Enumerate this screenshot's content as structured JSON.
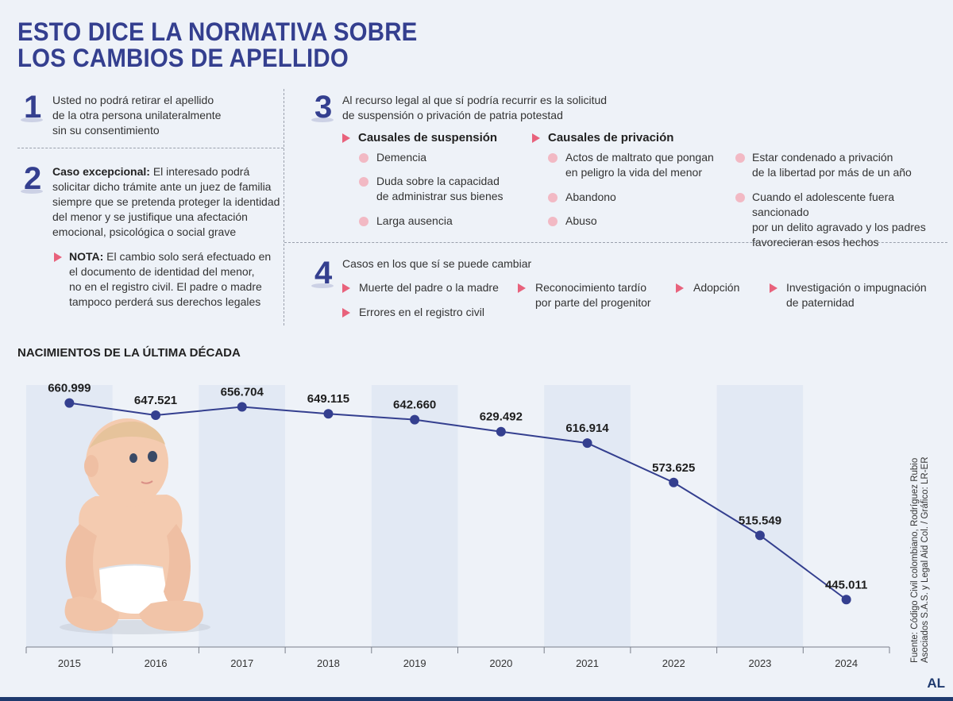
{
  "title": {
    "line1": "ESTO DICE LA NORMATIVA SOBRE",
    "line2": "LOS CAMBIOS DE APELLIDO"
  },
  "section1": {
    "number": "1",
    "lines": [
      "Usted no podrá retirar el apellido",
      "de la otra persona unilateralmente",
      "sin su consentimiento"
    ]
  },
  "section2": {
    "number": "2",
    "bold": "Caso excepcional:",
    "line1": " El interesado podrá",
    "lines": [
      "solicitar dicho trámite ante un juez de familia",
      "siempre que se pretenda proteger la identidad",
      "del menor y se justifique una afectación",
      "emocional, psicológica o social grave"
    ],
    "note_bold": "NOTA:",
    "note_line1": " El cambio solo será efectuado en",
    "note_lines": [
      "el documento de identidad del menor,",
      "no en el registro civil. El padre o madre",
      "tampoco perderá sus derechos legales"
    ]
  },
  "section3": {
    "number": "3",
    "lines": [
      "Al recurso legal al que sí podría recurrir es la solicitud",
      "de suspensión o privación de patria potestad"
    ],
    "suspension_title": "Causales de suspensión",
    "suspension_items": [
      "Demencia",
      "Duda sobre la capacidad",
      "de administrar sus bienes",
      "Larga ausencia"
    ],
    "privation_title": "Causales de privación",
    "privation_items": [
      "Actos de maltrato que pongan",
      "en peligro la vida del menor",
      "Abandono",
      "Abuso"
    ],
    "extra_items": [
      "Estar condenado a privación",
      "de la libertad por más de un año",
      "Cuando el adolescente fuera sancionado",
      "por un delito agravado y los padres",
      "favorecieran esos hechos"
    ]
  },
  "section4": {
    "number": "4",
    "title": "Casos en los que sí se puede cambiar",
    "items": [
      "Muerte del padre o la madre",
      "Errores en el registro civil",
      "Reconocimiento tardío",
      "por parte del progenitor",
      "Adopción",
      "Investigación o impugnación",
      "de paternidad"
    ]
  },
  "chart_title": "NACIMIENTOS DE LA ÚLTIMA DÉCADA",
  "chart_data": {
    "type": "line",
    "title": "NACIMIENTOS DE LA ÚLTIMA DÉCADA",
    "categories": [
      "2015",
      "2016",
      "2017",
      "2018",
      "2019",
      "2020",
      "2021",
      "2022",
      "2023",
      "2024"
    ],
    "values": [
      660999,
      647521,
      656704,
      649115,
      642660,
      629492,
      616914,
      573625,
      515549,
      445011
    ],
    "labels": [
      "660.999",
      "647.521",
      "656.704",
      "649.115",
      "642.660",
      "629.492",
      "616.914",
      "573.625",
      "515.549",
      "445.011"
    ],
    "line_color": "#343f8f",
    "grid": false
  },
  "source": {
    "line1": "Fuente: Código Civil colombiano, Rodríguez Rubio",
    "line2": "Asociados S.A.S. y Legal Aid Col. / Gráfico: LR-ER"
  },
  "logo": "AL",
  "colors": {
    "accent": "#343f8f",
    "marker": "#e8627c",
    "bullet": "#f2b9c4"
  }
}
